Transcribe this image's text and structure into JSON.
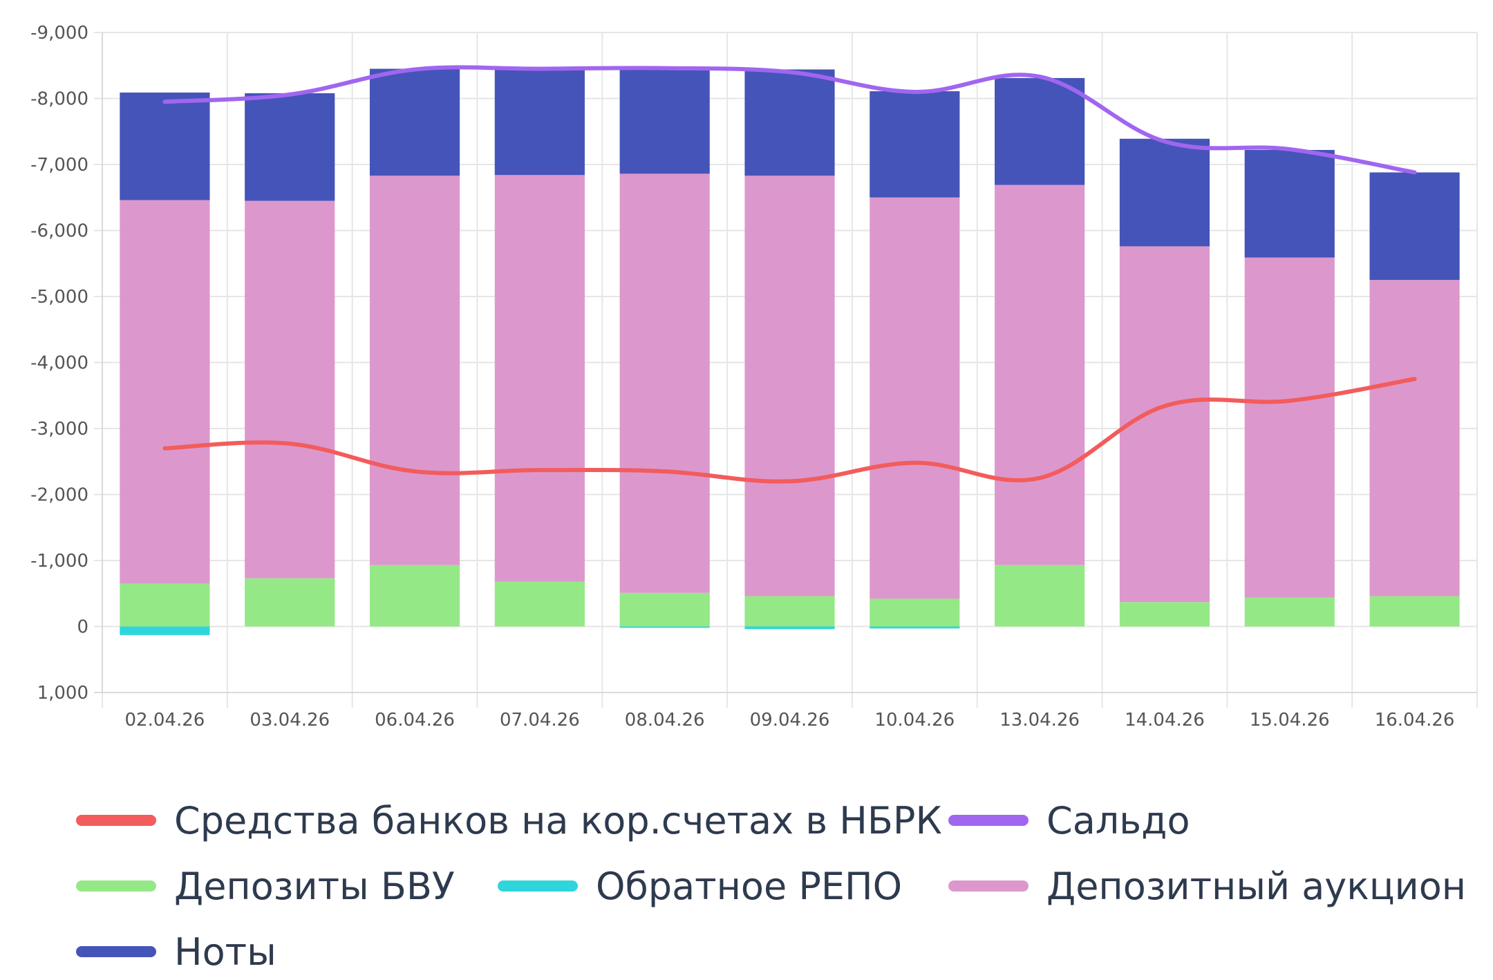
{
  "chart_data": {
    "type": "bar",
    "stacked": true,
    "title": "",
    "xlabel": "",
    "ylabel": "",
    "ylim": [
      1000,
      -9000
    ],
    "y_ticks": [
      {
        "value": -9000,
        "label": "-9,000"
      },
      {
        "value": -8000,
        "label": "-8,000"
      },
      {
        "value": -7000,
        "label": "-7,000"
      },
      {
        "value": -6000,
        "label": "-6,000"
      },
      {
        "value": -5000,
        "label": "-5,000"
      },
      {
        "value": -4000,
        "label": "-4,000"
      },
      {
        "value": -3000,
        "label": "-3,000"
      },
      {
        "value": -2000,
        "label": "-2,000"
      },
      {
        "value": -1000,
        "label": "-1,000"
      },
      {
        "value": 0,
        "label": "0"
      },
      {
        "value": 1000,
        "label": "1,000"
      }
    ],
    "grid": true,
    "legend_position": "bottom",
    "categories": [
      "02.04.26",
      "03.04.26",
      "06.04.26",
      "07.04.26",
      "08.04.26",
      "09.04.26",
      "10.04.26",
      "13.04.26",
      "14.04.26",
      "15.04.26",
      "16.04.26"
    ],
    "series": [
      {
        "name": "Средства банков на кор.счетах в НБРК",
        "kind": "line",
        "color": "#f25c5c",
        "values": [
          -2700,
          -2770,
          -2350,
          -2370,
          -2350,
          -2200,
          -2480,
          -2250,
          -3340,
          -3420,
          -3750
        ]
      },
      {
        "name": "Сальдо",
        "kind": "line",
        "color": "#a066f0",
        "values": [
          -7950,
          -8060,
          -8440,
          -8450,
          -8460,
          -8400,
          -8100,
          -8330,
          -7350,
          -7230,
          -6880
        ]
      },
      {
        "name": "Депозиты БВУ",
        "kind": "bar",
        "color": "#95e886",
        "values": [
          -650,
          -730,
          -930,
          -680,
          -510,
          -460,
          -420,
          -930,
          -370,
          -440,
          -460
        ]
      },
      {
        "name": "Обратное РЕПО",
        "kind": "bar",
        "color": "#2ed6dc",
        "values": [
          130,
          0,
          0,
          0,
          20,
          40,
          30,
          0,
          0,
          0,
          0
        ]
      },
      {
        "name": "Депозитный аукцион",
        "kind": "bar",
        "color": "#dc98cc",
        "values": [
          -5810,
          -5720,
          -5900,
          -6160,
          -6350,
          -6370,
          -6080,
          -5760,
          -5390,
          -5150,
          -4790
        ]
      },
      {
        "name": "Ноты",
        "kind": "bar",
        "color": "#4554b8",
        "values": [
          -1630,
          -1630,
          -1620,
          -1600,
          -1610,
          -1610,
          -1610,
          -1620,
          -1630,
          -1630,
          -1630
        ]
      }
    ]
  }
}
